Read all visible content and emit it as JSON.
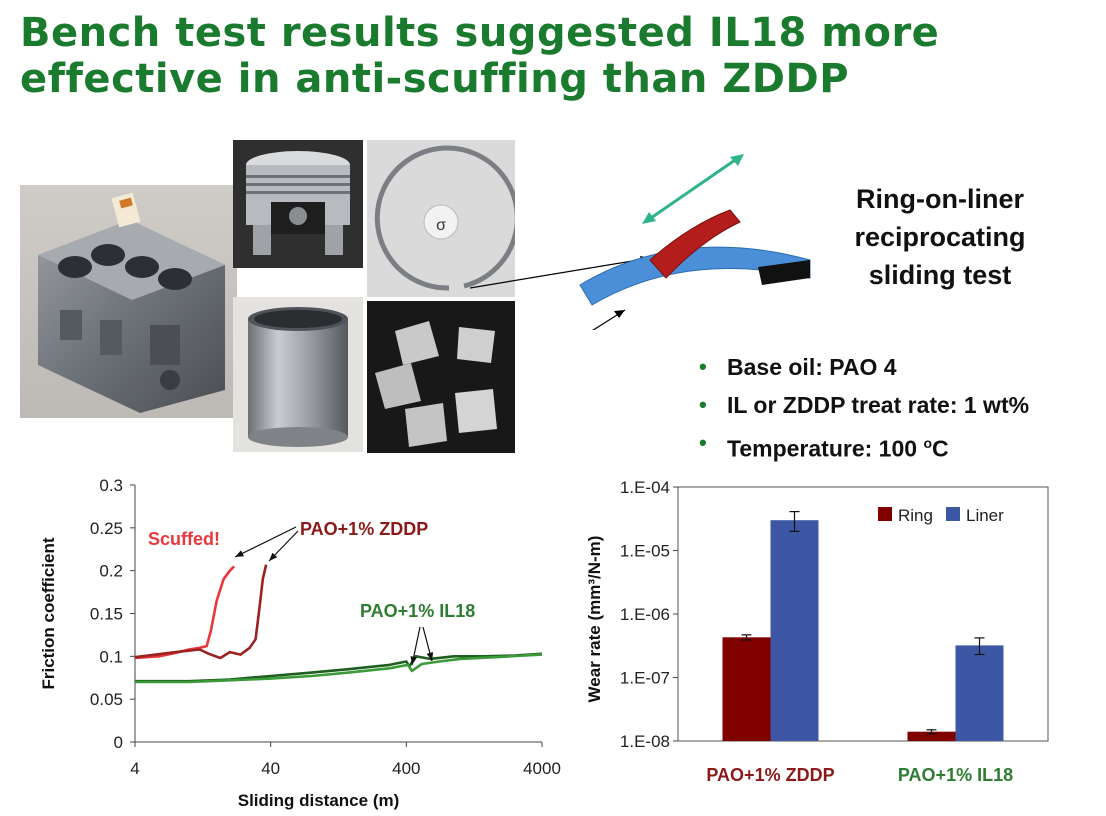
{
  "slide": {
    "title_line1": "Bench test results suggested IL18 more",
    "title_line2": "effective in anti-scuffing than ZDDP"
  },
  "test_diagram": {
    "label_lines": [
      "Ring-on-liner",
      "reciprocating",
      "sliding test"
    ]
  },
  "bullets": [
    "Base oil: PAO 4",
    "IL or ZDDP treat rate: 1 wt%"
  ],
  "temperature_bullet": {
    "prefix": "Temperature: 100 ",
    "superscript": "o",
    "suffix": "C"
  },
  "colors": {
    "title_green": "#1a7a2e",
    "scuffed_red": "#e8383b",
    "zddp_dark_red": "#8b1a1a",
    "il18_green": "#2e7d32",
    "ring_bar": "#800000",
    "liner_bar": "#3d57a5"
  },
  "chart_data": [
    {
      "type": "line",
      "title": "",
      "xlabel": "Sliding distance (m)",
      "ylabel": "Friction coefficient",
      "xscale": "log",
      "xlim": [
        4,
        4000
      ],
      "ylim": [
        0,
        0.3
      ],
      "xticks": [
        "4",
        "40",
        "400",
        "4000"
      ],
      "yticks": [
        "0",
        "0.05",
        "0.1",
        "0.15",
        "0.2",
        "0.25",
        "0.3"
      ],
      "grid": false,
      "series": [
        {
          "color": "#e8383b",
          "points": [
            [
              4,
              0.098
            ],
            [
              6,
              0.1
            ],
            [
              8,
              0.104
            ],
            [
              10,
              0.108
            ],
            [
              12,
              0.11
            ],
            [
              13.5,
              0.112
            ],
            [
              14.5,
              0.13
            ],
            [
              16,
              0.165
            ],
            [
              18,
              0.19
            ],
            [
              20,
              0.2
            ],
            [
              21.5,
              0.205
            ]
          ]
        },
        {
          "color": "#9c2222",
          "points": [
            [
              4,
              0.099
            ],
            [
              8,
              0.105
            ],
            [
              12,
              0.108
            ],
            [
              14,
              0.103
            ],
            [
              17,
              0.098
            ],
            [
              20,
              0.105
            ],
            [
              24,
              0.102
            ],
            [
              28,
              0.11
            ],
            [
              31,
              0.12
            ],
            [
              33,
              0.155
            ],
            [
              35,
              0.19
            ],
            [
              37,
              0.207
            ]
          ]
        },
        {
          "color": "#1e5e1e",
          "points": [
            [
              4,
              0.071
            ],
            [
              10,
              0.071
            ],
            [
              20,
              0.073
            ],
            [
              40,
              0.077
            ],
            [
              80,
              0.081
            ],
            [
              150,
              0.085
            ],
            [
              300,
              0.09
            ],
            [
              400,
              0.094
            ],
            [
              420,
              0.088
            ],
            [
              470,
              0.1
            ],
            [
              600,
              0.097
            ],
            [
              900,
              0.1
            ],
            [
              1500,
              0.1
            ],
            [
              2500,
              0.101
            ],
            [
              4000,
              0.103
            ]
          ]
        },
        {
          "color": "#3b9b3b",
          "points": [
            [
              4,
              0.07
            ],
            [
              10,
              0.07
            ],
            [
              20,
              0.072
            ],
            [
              40,
              0.074
            ],
            [
              80,
              0.077
            ],
            [
              150,
              0.081
            ],
            [
              300,
              0.086
            ],
            [
              410,
              0.09
            ],
            [
              440,
              0.083
            ],
            [
              520,
              0.091
            ],
            [
              700,
              0.094
            ],
            [
              1000,
              0.097
            ],
            [
              1800,
              0.099
            ],
            [
              3000,
              0.101
            ],
            [
              4000,
              0.102
            ]
          ]
        }
      ],
      "annotations": [
        "Scuffed!",
        "PAO+1% ZDDP",
        "PAO+1% IL18"
      ]
    },
    {
      "type": "bar",
      "title": "",
      "xlabel": "",
      "ylabel": "Wear rate (mm³/N-m)",
      "yscale": "log",
      "ylim": [
        1e-08,
        0.0001
      ],
      "yticks": [
        "1.E-04",
        "1.E-05",
        "1.E-06",
        "1.E-07",
        "1.E-08"
      ],
      "categories": [
        "PAO+1% ZDDP",
        "PAO+1% IL18"
      ],
      "legend_position": "top-right",
      "series": [
        {
          "name": "Ring",
          "color": "#800000",
          "values": [
            4.3e-07,
            1.4e-08
          ],
          "errors": [
            [
              3.9e-07,
              4.7e-07
            ],
            [
              1.3e-08,
              1.5e-08
            ]
          ]
        },
        {
          "name": "Liner",
          "color": "#3d57a5",
          "values": [
            3e-05,
            3.2e-07
          ],
          "errors": [
            [
              2e-05,
              4.1e-05
            ],
            [
              2.3e-07,
              4.2e-07
            ]
          ]
        }
      ]
    }
  ]
}
